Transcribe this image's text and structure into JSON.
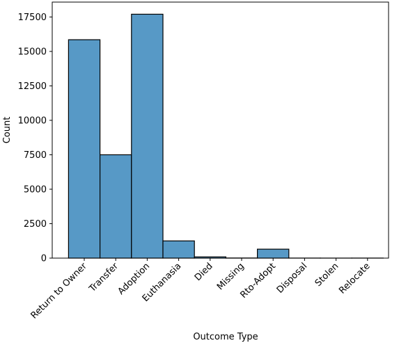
{
  "chart_data": {
    "type": "bar",
    "title": "",
    "xlabel": "Outcome Type",
    "ylabel": "Count",
    "categories": [
      "Return to Owner",
      "Transfer",
      "Adoption",
      "Euthanasia",
      "Died",
      "Missing",
      "Rto-Adopt",
      "Disposal",
      "Stolen",
      "Relocate"
    ],
    "values": [
      15850,
      7500,
      17700,
      1250,
      90,
      10,
      650,
      5,
      3,
      5
    ],
    "yticks": [
      0,
      2500,
      5000,
      7500,
      10000,
      12500,
      15000,
      17500
    ],
    "yticklabels": [
      "0",
      "2500",
      "5000",
      "7500",
      "10000",
      "12500",
      "15000",
      "17500"
    ],
    "ylim": [
      0,
      18580
    ],
    "bar_color": "#5799c6",
    "edge_color": "#000000",
    "grid": false,
    "legend": null
  }
}
